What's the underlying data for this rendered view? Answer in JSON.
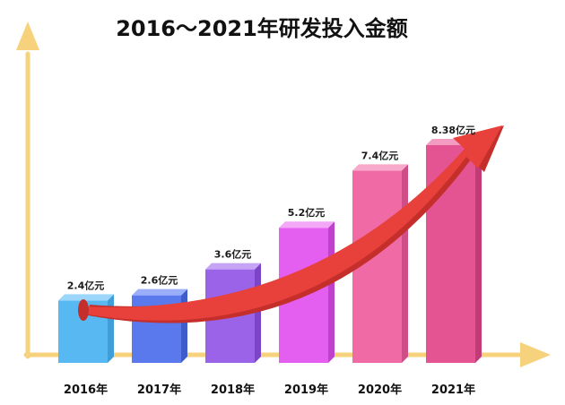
{
  "chart_data": {
    "type": "bar",
    "title": "2016～2021年研发投入金额",
    "categories": [
      "2016年",
      "2017年",
      "2018年",
      "2019年",
      "2020年",
      "2021年"
    ],
    "values": [
      2.4,
      2.6,
      3.6,
      5.2,
      7.4,
      8.38
    ],
    "value_labels": [
      "2.4亿元",
      "2.6亿元",
      "3.6亿元",
      "5.2亿元",
      "7.4亿元",
      "8.38亿元"
    ],
    "unit": "亿元",
    "xlabel": "",
    "ylabel": "",
    "ylim": [
      0,
      8.38
    ],
    "grid": false,
    "legend": "none",
    "trend_arrow": true,
    "colors": {
      "axis": "#f7d27c",
      "arrow": "#e8403a",
      "arrow_shadow": "#c42f2c",
      "bars": [
        {
          "front": "#58b8f2",
          "side": "#3f9ed8",
          "top": "#9cd6fb"
        },
        {
          "front": "#5a79ec",
          "side": "#3f5ccb",
          "top": "#9aaefa"
        },
        {
          "front": "#9b63e8",
          "side": "#7a45c7",
          "top": "#c5a4f6"
        },
        {
          "front": "#e45ef0",
          "side": "#c041cc",
          "top": "#f2a7f7"
        },
        {
          "front": "#f06aa6",
          "side": "#cf4e88",
          "top": "#f8a9cb"
        },
        {
          "front": "#e55492",
          "side": "#c23a76",
          "top": "#f39bc0"
        }
      ]
    }
  }
}
